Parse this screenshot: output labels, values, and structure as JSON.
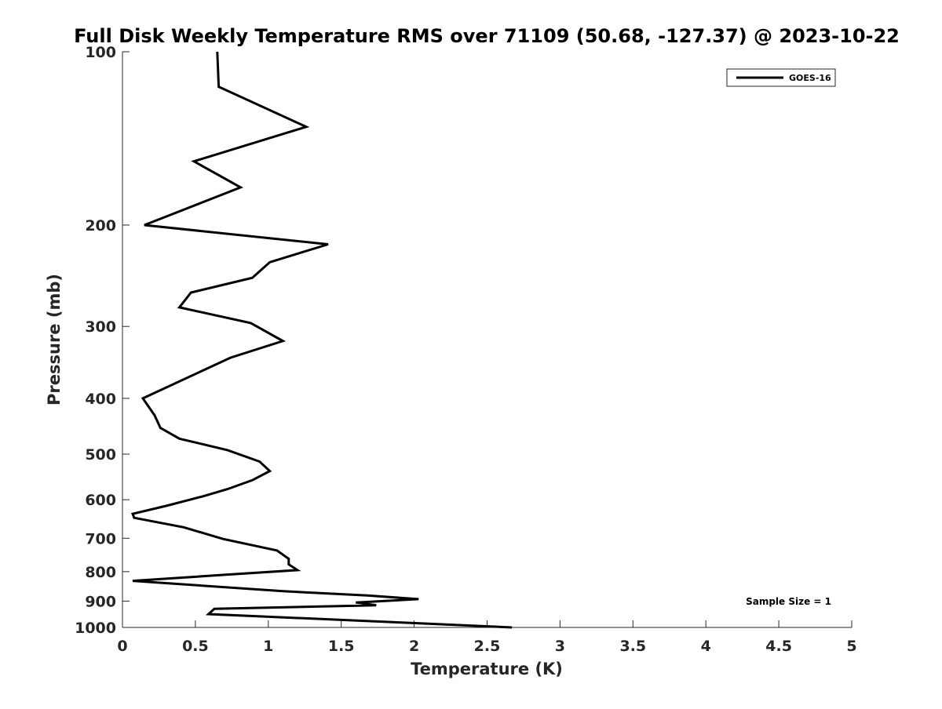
{
  "chart_data": {
    "type": "line",
    "title": "Full Disk Weekly Temperature RMS over 71109 (50.68, -127.37) @ 2023-10-22",
    "xlabel": "Temperature (K)",
    "ylabel": "Pressure (mb)",
    "xlim": [
      0,
      5
    ],
    "ylim": [
      100,
      1000
    ],
    "yscale": "log",
    "y_direction": "reversed",
    "x_ticks": [
      "0",
      "0.5",
      "1",
      "1.5",
      "2",
      "2.5",
      "3",
      "3.5",
      "4",
      "4.5",
      "5"
    ],
    "y_ticks": [
      "100",
      "200",
      "300",
      "400",
      "500",
      "600",
      "700",
      "800",
      "900",
      "1000"
    ],
    "grid": false,
    "legend_position": "top-right",
    "series": [
      {
        "name": "GOES-16",
        "color": "#000000",
        "x": [
          0.65,
          0.66,
          1.26,
          0.49,
          0.81,
          0.15,
          1.41,
          1.01,
          0.89,
          0.47,
          0.39,
          0.88,
          1.1,
          0.74,
          0.14,
          0.22,
          0.26,
          0.39,
          0.72,
          0.94,
          1.01,
          0.89,
          0.72,
          0.55,
          0.3,
          0.07,
          0.08,
          0.42,
          0.69,
          1.06,
          1.14,
          1.14,
          1.2,
          0.71,
          0.07,
          1.1,
          1.68,
          2.03,
          1.6,
          1.74,
          0.63,
          0.59,
          1.9,
          2.67
        ],
        "y": [
          100,
          115,
          135,
          155,
          172,
          200,
          216,
          232,
          247,
          262,
          278,
          296,
          318,
          340,
          400,
          428,
          450,
          470,
          492,
          515,
          535,
          555,
          575,
          592,
          615,
          635,
          645,
          670,
          702,
          735,
          760,
          777,
          795,
          810,
          830,
          865,
          880,
          893,
          905,
          915,
          928,
          948,
          980,
          1000
        ]
      }
    ],
    "annotations": [
      "Sample Size = 1"
    ]
  }
}
